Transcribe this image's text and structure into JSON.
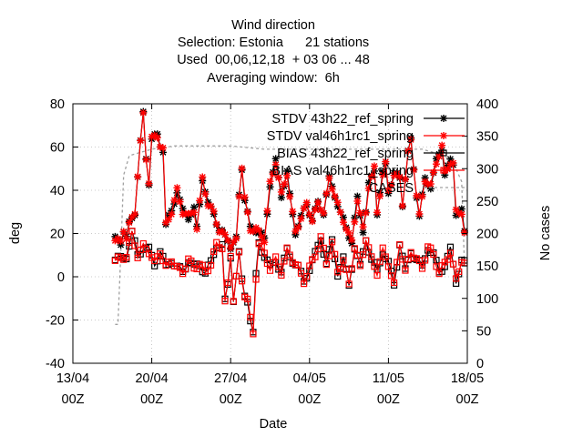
{
  "chart_data": {
    "type": "line",
    "title_lines": [
      "Wind direction",
      "Selection: Estonia      21 stations",
      "Used  00,06,12,18  + 03 06 ... 48",
      "Averaging window:  6h"
    ],
    "xlabel": "Date",
    "ylabel": "deg",
    "y2label": "No cases",
    "ylim": [
      -40,
      80
    ],
    "y2lim": [
      0,
      400
    ],
    "xlim_days": [
      0,
      35
    ],
    "yticks": [
      "-40",
      "-20",
      "0",
      "20",
      "40",
      "60",
      "80"
    ],
    "y2ticks": [
      "0",
      "50",
      "100",
      "150",
      "200",
      "250",
      "300",
      "350",
      "400"
    ],
    "xticks": [
      {
        "day": 0,
        "line1": "13/04",
        "line2": "00Z"
      },
      {
        "day": 7,
        "line1": "20/04",
        "line2": "00Z"
      },
      {
        "day": 14,
        "line1": "27/04",
        "line2": "00Z"
      },
      {
        "day": 21,
        "line1": "04/05",
        "line2": "00Z"
      },
      {
        "day": 28,
        "line1": "11/05",
        "line2": "00Z"
      },
      {
        "day": 35,
        "line1": "18/05",
        "line2": "00Z"
      }
    ],
    "grid": true,
    "legend_position": "top-right",
    "series": [
      {
        "name": "STDV 43h22_ref_spring",
        "axis": "y1",
        "color": "#000000",
        "marker": "x",
        "dash": false,
        "kind": "stdv_ref"
      },
      {
        "name": "STDV val46h1rc1_spring",
        "axis": "y1",
        "color": "#ff0000",
        "marker": "x",
        "dash": false,
        "kind": "stdv_val"
      },
      {
        "name": "BIAS 43h22_ref_spring",
        "axis": "y1",
        "color": "#000000",
        "marker": "square",
        "dash": false,
        "kind": "bias_ref"
      },
      {
        "name": "BIAS val46h1rc1_spring",
        "axis": "y1",
        "color": "#ff0000",
        "marker": "square",
        "dash": false,
        "kind": "bias_val"
      },
      {
        "name": "CASES",
        "axis": "y2",
        "color": "#a0a0a0",
        "marker": "none",
        "dash": true,
        "kind": "cases"
      }
    ],
    "stdv_keypoints": [
      [
        3.75,
        17
      ],
      [
        4.25,
        16
      ],
      [
        4.5,
        22
      ],
      [
        4.75,
        18
      ],
      [
        5.0,
        24
      ],
      [
        5.5,
        30
      ],
      [
        5.75,
        47
      ],
      [
        6.0,
        62
      ],
      [
        6.25,
        75
      ],
      [
        6.5,
        55
      ],
      [
        6.75,
        44
      ],
      [
        7.0,
        64
      ],
      [
        7.5,
        65
      ],
      [
        7.75,
        61
      ],
      [
        8.0,
        59
      ],
      [
        8.25,
        24
      ],
      [
        8.75,
        30
      ],
      [
        9.25,
        40
      ],
      [
        9.75,
        30
      ],
      [
        10.25,
        28
      ],
      [
        10.75,
        31
      ],
      [
        11.0,
        22
      ],
      [
        11.5,
        46
      ],
      [
        12.0,
        33
      ],
      [
        12.5,
        30
      ],
      [
        13.0,
        21
      ],
      [
        13.5,
        19
      ],
      [
        13.75,
        18
      ],
      [
        14.0,
        14
      ],
      [
        14.25,
        15
      ],
      [
        14.5,
        17
      ],
      [
        14.75,
        38
      ],
      [
        15.0,
        51
      ],
      [
        15.25,
        36
      ],
      [
        15.75,
        22
      ],
      [
        16.25,
        22
      ],
      [
        16.75,
        19
      ],
      [
        17.0,
        17
      ],
      [
        17.5,
        43
      ],
      [
        18.0,
        53
      ],
      [
        18.5,
        38
      ],
      [
        19.0,
        48
      ],
      [
        19.25,
        37
      ],
      [
        19.75,
        21
      ],
      [
        20.25,
        27
      ],
      [
        20.75,
        34
      ],
      [
        21.25,
        26
      ],
      [
        21.75,
        34
      ],
      [
        22.25,
        30
      ],
      [
        22.75,
        45
      ],
      [
        23.25,
        38
      ],
      [
        23.75,
        29
      ],
      [
        24.25,
        23
      ],
      [
        24.75,
        16
      ],
      [
        25.25,
        36
      ],
      [
        25.75,
        22
      ],
      [
        26.0,
        30
      ],
      [
        26.25,
        42
      ],
      [
        26.75,
        50
      ],
      [
        27.0,
        30
      ],
      [
        27.5,
        47
      ],
      [
        27.75,
        52
      ],
      [
        28.0,
        40
      ],
      [
        28.5,
        47
      ],
      [
        29.0,
        46
      ],
      [
        29.25,
        34
      ],
      [
        29.75,
        57
      ],
      [
        30.0,
        63
      ],
      [
        30.5,
        38
      ],
      [
        30.75,
        28
      ],
      [
        31.25,
        45
      ],
      [
        31.75,
        42
      ],
      [
        32.25,
        53
      ],
      [
        32.75,
        60
      ],
      [
        33.0,
        48
      ],
      [
        33.5,
        53
      ],
      [
        33.75,
        52
      ],
      [
        34.0,
        30
      ],
      [
        34.5,
        30
      ],
      [
        34.75,
        20
      ]
    ],
    "bias_keypoints": [
      [
        3.75,
        8
      ],
      [
        4.25,
        8
      ],
      [
        4.75,
        10
      ],
      [
        5.25,
        20
      ],
      [
        5.75,
        10
      ],
      [
        6.25,
        14
      ],
      [
        6.75,
        12
      ],
      [
        7.25,
        6
      ],
      [
        7.75,
        12
      ],
      [
        8.25,
        4
      ],
      [
        8.75,
        8
      ],
      [
        9.25,
        4
      ],
      [
        9.75,
        2
      ],
      [
        10.25,
        8
      ],
      [
        10.75,
        4
      ],
      [
        11.25,
        6
      ],
      [
        11.75,
        2
      ],
      [
        12.25,
        6
      ],
      [
        12.75,
        15
      ],
      [
        13.25,
        14
      ],
      [
        13.5,
        -12
      ],
      [
        13.75,
        -4
      ],
      [
        14.0,
        10
      ],
      [
        14.25,
        -10
      ],
      [
        14.75,
        10
      ],
      [
        15.0,
        -2
      ],
      [
        15.25,
        -8
      ],
      [
        15.5,
        -10
      ],
      [
        15.75,
        -20
      ],
      [
        16.0,
        -27
      ],
      [
        16.25,
        0
      ],
      [
        16.5,
        16
      ],
      [
        17.0,
        10
      ],
      [
        17.5,
        4
      ],
      [
        18.0,
        8
      ],
      [
        18.5,
        2
      ],
      [
        19.0,
        12
      ],
      [
        19.5,
        8
      ],
      [
        20.0,
        4
      ],
      [
        20.5,
        -2
      ],
      [
        21.0,
        4
      ],
      [
        21.5,
        10
      ],
      [
        22.0,
        18
      ],
      [
        22.5,
        6
      ],
      [
        23.0,
        16
      ],
      [
        23.5,
        2
      ],
      [
        24.0,
        8
      ],
      [
        24.5,
        -4
      ],
      [
        25.0,
        14
      ],
      [
        25.5,
        4
      ],
      [
        26.0,
        18
      ],
      [
        26.5,
        8
      ],
      [
        27.0,
        2
      ],
      [
        27.5,
        12
      ],
      [
        28.0,
        6
      ],
      [
        28.5,
        -4
      ],
      [
        29.0,
        16
      ],
      [
        29.5,
        2
      ],
      [
        30.0,
        12
      ],
      [
        30.5,
        8
      ],
      [
        31.0,
        4
      ],
      [
        31.5,
        14
      ],
      [
        32.0,
        10
      ],
      [
        32.5,
        2
      ],
      [
        33.0,
        6
      ],
      [
        33.5,
        12
      ],
      [
        34.0,
        -2
      ],
      [
        34.5,
        8
      ],
      [
        34.75,
        6
      ]
    ],
    "cases_keypoints": [
      [
        3.75,
        60
      ],
      [
        4.0,
        60
      ],
      [
        4.25,
        170
      ],
      [
        4.5,
        290
      ],
      [
        5.0,
        320
      ],
      [
        7.0,
        330
      ],
      [
        9.0,
        335
      ],
      [
        11.0,
        335
      ],
      [
        14.0,
        335
      ],
      [
        17.0,
        330
      ],
      [
        20.0,
        330
      ],
      [
        24.0,
        330
      ],
      [
        28.0,
        330
      ],
      [
        31.0,
        330
      ],
      [
        33.0,
        320
      ],
      [
        34.0,
        300
      ],
      [
        34.5,
        280
      ],
      [
        34.75,
        150
      ]
    ]
  }
}
